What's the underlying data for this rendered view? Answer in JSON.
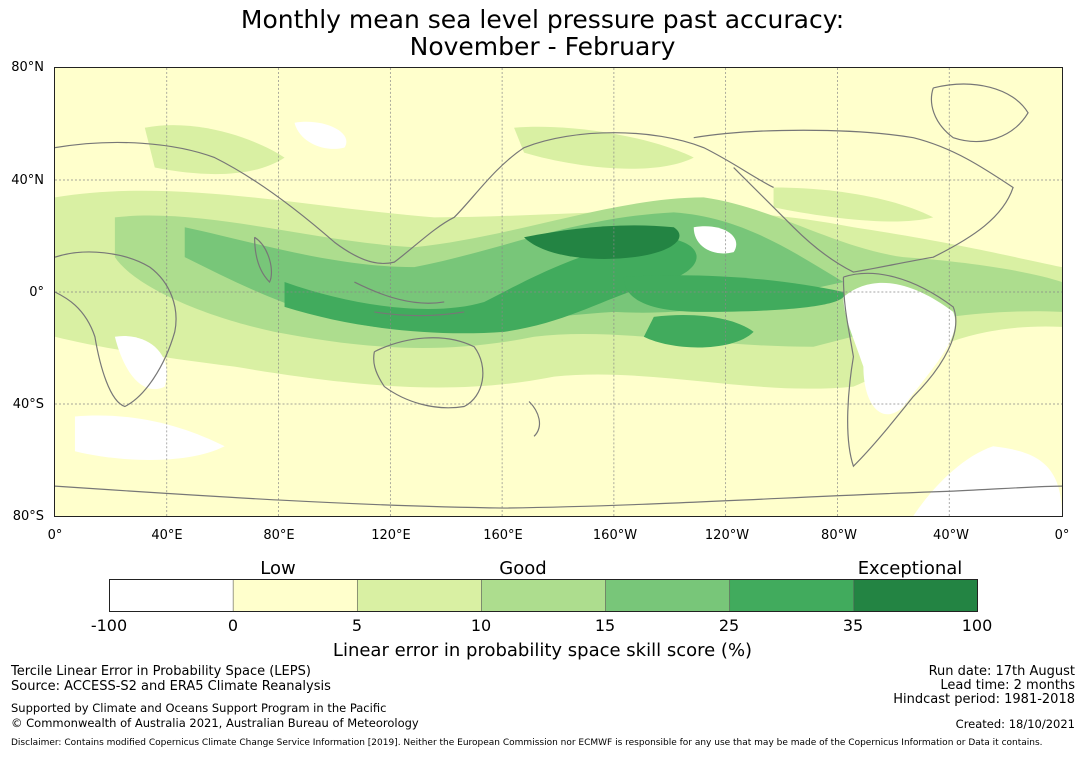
{
  "title_line1": "Monthly mean sea level pressure past accuracy:",
  "title_line2": "November - February",
  "map": {
    "lat_labels": [
      "80°N",
      "40°N",
      "0°",
      "40°S",
      "80°S"
    ],
    "lon_labels": [
      "0°",
      "40°E",
      "80°E",
      "120°E",
      "160°E",
      "160°W",
      "120°W",
      "80°W",
      "40°W",
      "0°"
    ],
    "grid": true,
    "colors": {
      "ocean_low": "#ffffcc",
      "cat_5_10": "#d9f0a3",
      "cat_10_15": "#addd8e",
      "cat_15_25": "#78c679",
      "cat_25_35": "#41ab5d",
      "cat_35_100": "#238443",
      "land_white": "#ffffff",
      "coastline": "#777777"
    }
  },
  "colorbar": {
    "category_labels": [
      "Low",
      "Good",
      "Exceptional"
    ],
    "ticks": [
      "-100",
      "0",
      "5",
      "10",
      "15",
      "25",
      "35",
      "100"
    ],
    "colors": [
      "#ffffff",
      "#ffffcc",
      "#d9f0a3",
      "#addd8e",
      "#78c679",
      "#41ab5d",
      "#238443"
    ],
    "label": "Linear error in probability space skill score (%)"
  },
  "footer": {
    "left1": "Tercile Linear Error in Probability Space (LEPS)",
    "left2": "Source: ACCESS-S2 and ERA5 Climate Reanalysis",
    "left3": "Supported by Climate and Oceans Support Program in the Pacific",
    "left4": "© Commonwealth of Australia 2021, Australian Bureau of Meteorology",
    "right1": "Run date: 17th August",
    "right2": "Lead time: 2 months",
    "right3": "Hindcast period: 1981-2018",
    "right4": "Created: 18/10/2021",
    "disclaimer": "Disclaimer: Contains modified Copernicus Climate Change Service Information [2019]. Neither the European Commission nor ECMWF is responsible for any use that may be made of the Copernicus Information or Data it contains."
  }
}
